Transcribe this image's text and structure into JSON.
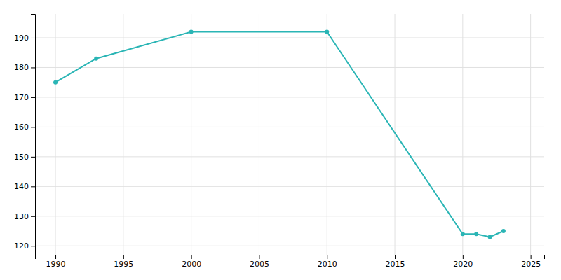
{
  "chart_data": {
    "type": "line",
    "x": [
      1990,
      1993,
      2000,
      2010,
      2020,
      2021,
      2022,
      2023
    ],
    "values": [
      175,
      183,
      192,
      192,
      124,
      124,
      123,
      125
    ],
    "color": "#2ab5b5",
    "marker": "circle",
    "xlim": [
      1988.5,
      2026
    ],
    "ylim": [
      117,
      198
    ],
    "xticks": [
      1990,
      1995,
      2000,
      2005,
      2010,
      2015,
      2020,
      2025
    ],
    "yticks": [
      120,
      130,
      140,
      150,
      160,
      170,
      180,
      190
    ],
    "grid": true
  }
}
